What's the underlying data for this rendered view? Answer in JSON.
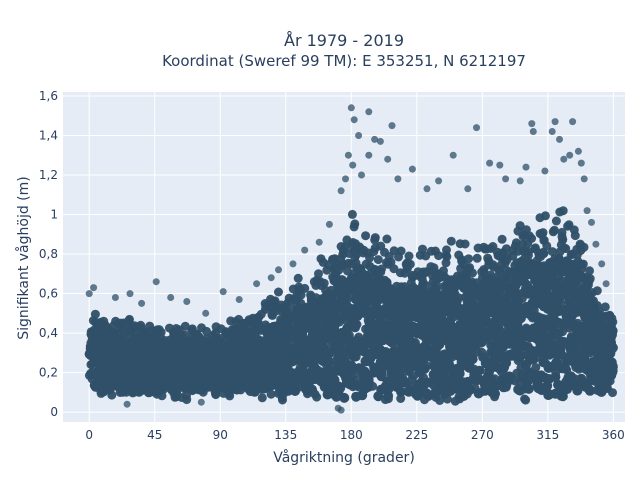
{
  "chart_data": {
    "type": "scatter",
    "title": "År 1979 - 2019",
    "subtitle": "Koordinat (Sweref 99 TM): E 353251, N 6212197",
    "xlabel": "Vågriktning (grader)",
    "ylabel": "Signifikant våghöjd (m)",
    "xlim": [
      -18,
      368
    ],
    "ylim": [
      -0.05,
      1.62
    ],
    "x_ticks": [
      0,
      45,
      90,
      135,
      180,
      225,
      270,
      315,
      360
    ],
    "x_tick_labels": [
      "0",
      "45",
      "90",
      "135",
      "180",
      "225",
      "270",
      "315",
      "360"
    ],
    "y_ticks": [
      0,
      0.2,
      0.4,
      0.6,
      0.8,
      1.0,
      1.2,
      1.4,
      1.6
    ],
    "y_tick_labels": [
      "0",
      "0,2",
      "0,4",
      "0,6",
      "0,8",
      "1",
      "1,2",
      "1,4",
      "1,6"
    ],
    "grid": true,
    "marker_color": "#2f5068",
    "background_color": "#e5ecf6",
    "envelope": {
      "x": [
        0,
        15,
        30,
        45,
        60,
        75,
        90,
        105,
        120,
        135,
        150,
        160,
        170,
        180,
        195,
        210,
        225,
        240,
        255,
        270,
        285,
        300,
        315,
        325,
        335,
        345,
        352,
        360
      ],
      "y_min": [
        0.05,
        0.05,
        0.05,
        0.05,
        0.05,
        0.06,
        0.06,
        0.05,
        0.05,
        0.04,
        0.04,
        0.03,
        0.02,
        0.02,
        0.03,
        0.03,
        0.03,
        0.03,
        0.03,
        0.03,
        0.03,
        0.03,
        0.03,
        0.03,
        0.03,
        0.04,
        0.05,
        0.06
      ],
      "y_max": [
        0.55,
        0.5,
        0.48,
        0.45,
        0.45,
        0.44,
        0.45,
        0.5,
        0.58,
        0.65,
        0.72,
        0.8,
        0.95,
        1.02,
        0.95,
        0.88,
        0.85,
        0.86,
        0.88,
        0.9,
        0.92,
        0.98,
        1.05,
        1.08,
        1.02,
        0.8,
        0.62,
        0.58
      ]
    },
    "outliers": [
      {
        "x": 180,
        "y": 1.54
      },
      {
        "x": 192,
        "y": 1.52
      },
      {
        "x": 182,
        "y": 1.48
      },
      {
        "x": 185,
        "y": 1.4
      },
      {
        "x": 192,
        "y": 1.3
      },
      {
        "x": 196,
        "y": 1.38
      },
      {
        "x": 200,
        "y": 1.37
      },
      {
        "x": 208,
        "y": 1.45
      },
      {
        "x": 178,
        "y": 1.3
      },
      {
        "x": 181,
        "y": 1.25
      },
      {
        "x": 176,
        "y": 1.18
      },
      {
        "x": 173,
        "y": 1.12
      },
      {
        "x": 187,
        "y": 1.2
      },
      {
        "x": 205,
        "y": 1.28
      },
      {
        "x": 212,
        "y": 1.18
      },
      {
        "x": 222,
        "y": 1.23
      },
      {
        "x": 232,
        "y": 1.13
      },
      {
        "x": 240,
        "y": 1.17
      },
      {
        "x": 250,
        "y": 1.3
      },
      {
        "x": 260,
        "y": 1.13
      },
      {
        "x": 266,
        "y": 1.44
      },
      {
        "x": 275,
        "y": 1.26
      },
      {
        "x": 282,
        "y": 1.25
      },
      {
        "x": 286,
        "y": 1.18
      },
      {
        "x": 296,
        "y": 1.17
      },
      {
        "x": 300,
        "y": 1.24
      },
      {
        "x": 304,
        "y": 1.46
      },
      {
        "x": 305,
        "y": 1.42
      },
      {
        "x": 313,
        "y": 1.22
      },
      {
        "x": 318,
        "y": 1.42
      },
      {
        "x": 320,
        "y": 1.47
      },
      {
        "x": 323,
        "y": 1.38
      },
      {
        "x": 326,
        "y": 1.28
      },
      {
        "x": 330,
        "y": 1.3
      },
      {
        "x": 332,
        "y": 1.47
      },
      {
        "x": 336,
        "y": 1.32
      },
      {
        "x": 338,
        "y": 1.26
      },
      {
        "x": 340,
        "y": 1.18
      },
      {
        "x": 342,
        "y": 1.02
      },
      {
        "x": 345,
        "y": 0.96
      },
      {
        "x": 348,
        "y": 0.85
      },
      {
        "x": 352,
        "y": 0.75
      },
      {
        "x": 355,
        "y": 0.65
      },
      {
        "x": 0,
        "y": 0.6
      },
      {
        "x": 3,
        "y": 0.63
      },
      {
        "x": 18,
        "y": 0.58
      },
      {
        "x": 28,
        "y": 0.6
      },
      {
        "x": 36,
        "y": 0.55
      },
      {
        "x": 46,
        "y": 0.66
      },
      {
        "x": 56,
        "y": 0.58
      },
      {
        "x": 67,
        "y": 0.56
      },
      {
        "x": 80,
        "y": 0.5
      },
      {
        "x": 92,
        "y": 0.61
      },
      {
        "x": 103,
        "y": 0.57
      },
      {
        "x": 115,
        "y": 0.65
      },
      {
        "x": 125,
        "y": 0.68
      },
      {
        "x": 130,
        "y": 0.72
      },
      {
        "x": 140,
        "y": 0.75
      },
      {
        "x": 148,
        "y": 0.82
      },
      {
        "x": 158,
        "y": 0.86
      },
      {
        "x": 165,
        "y": 0.95
      },
      {
        "x": 26,
        "y": 0.04
      },
      {
        "x": 77,
        "y": 0.05
      },
      {
        "x": 171,
        "y": 0.02
      },
      {
        "x": 173,
        "y": 0.01
      }
    ]
  }
}
